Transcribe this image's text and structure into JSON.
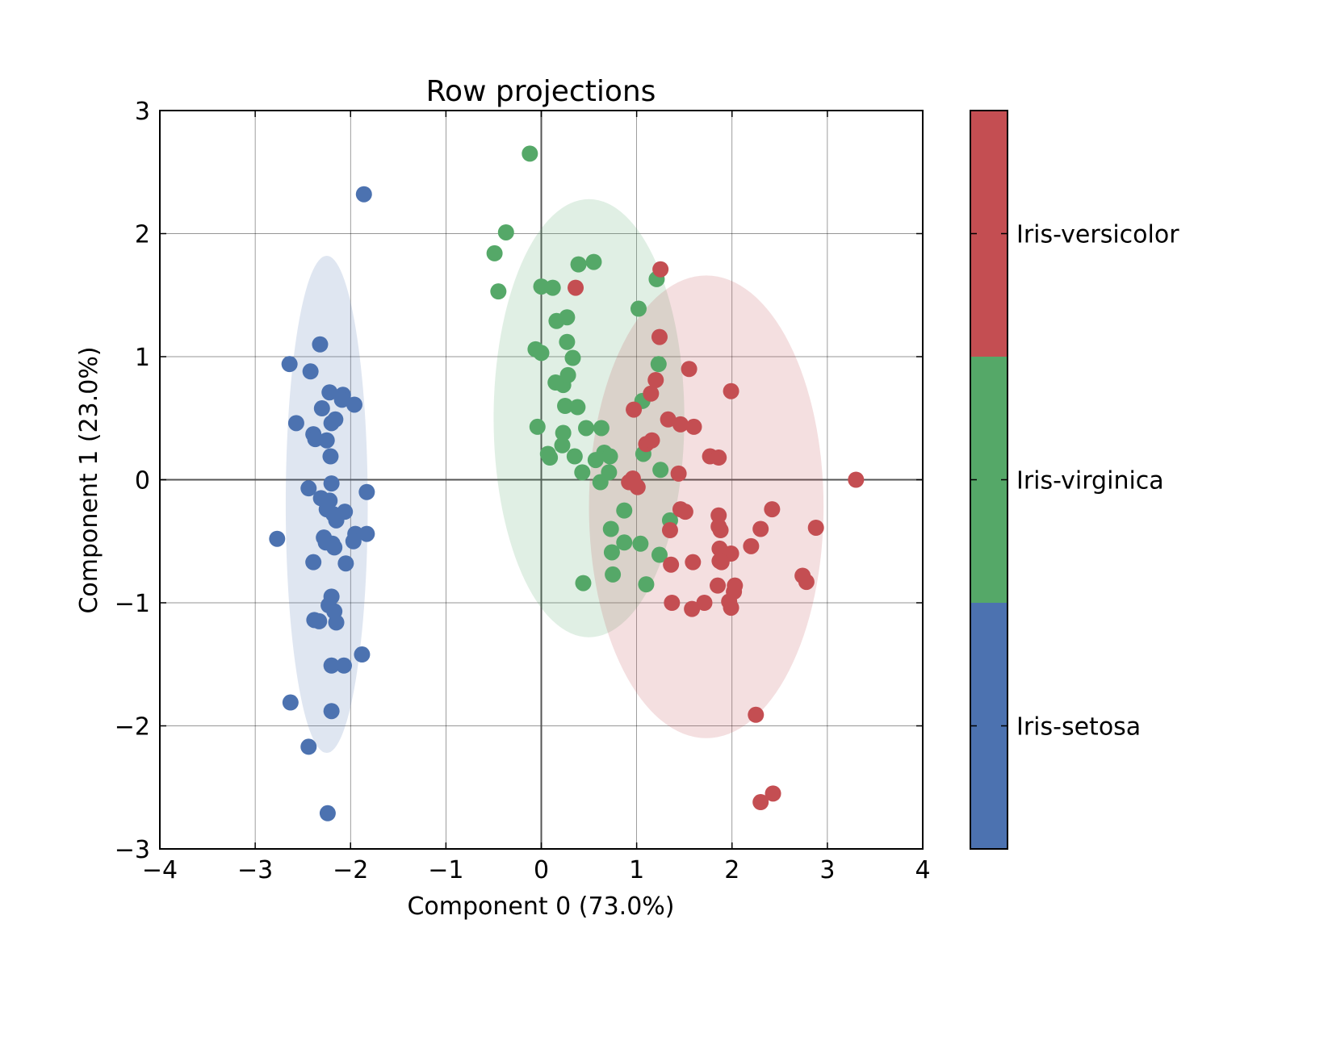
{
  "chart_data": {
    "type": "scatter",
    "title": "Row projections",
    "xlabel": "Component 0 (73.0%)",
    "ylabel": "Component 1 (23.0%)",
    "xlim": [
      -4,
      4
    ],
    "ylim": [
      -3,
      3
    ],
    "xticks": [
      -4,
      -3,
      -2,
      -1,
      0,
      1,
      2,
      3,
      4
    ],
    "yticks": [
      -3,
      -2,
      -1,
      0,
      1,
      2,
      3
    ],
    "xtick_labels": [
      "−4",
      "−3",
      "−2",
      "−1",
      "0",
      "1",
      "2",
      "3",
      "4"
    ],
    "ytick_labels": [
      "−3",
      "−2",
      "−1",
      "0",
      "1",
      "2",
      "3"
    ],
    "grid": true,
    "colorbar": {
      "labels": [
        "Iris-setosa",
        "Iris-virginica",
        "Iris-versicolor"
      ],
      "colors": [
        "#4c72b0",
        "#55a868",
        "#c44e52"
      ]
    },
    "series": [
      {
        "name": "Iris-setosa",
        "color": "#4c72b0",
        "ellipse": {
          "cx": -2.25,
          "cy": -0.2,
          "rx": 0.43,
          "ry": 2.02
        },
        "points": [
          [
            -1.86,
            2.32
          ],
          [
            -2.32,
            1.1
          ],
          [
            -2.64,
            0.94
          ],
          [
            -2.42,
            0.88
          ],
          [
            -2.22,
            0.71
          ],
          [
            -2.08,
            0.69
          ],
          [
            -2.09,
            0.65
          ],
          [
            -1.96,
            0.61
          ],
          [
            -2.3,
            0.58
          ],
          [
            -2.57,
            0.46
          ],
          [
            -2.2,
            0.46
          ],
          [
            -2.16,
            0.49
          ],
          [
            -2.39,
            0.37
          ],
          [
            -2.37,
            0.33
          ],
          [
            -2.25,
            0.32
          ],
          [
            -2.21,
            0.19
          ],
          [
            -2.2,
            -0.03
          ],
          [
            -2.44,
            -0.07
          ],
          [
            -1.83,
            -0.1
          ],
          [
            -2.31,
            -0.15
          ],
          [
            -2.22,
            -0.17
          ],
          [
            -2.25,
            -0.24
          ],
          [
            -2.18,
            -0.28
          ],
          [
            -2.06,
            -0.26
          ],
          [
            -2.15,
            -0.33
          ],
          [
            -2.77,
            -0.48
          ],
          [
            -2.28,
            -0.47
          ],
          [
            -2.26,
            -0.51
          ],
          [
            -2.19,
            -0.52
          ],
          [
            -2.17,
            -0.55
          ],
          [
            -1.95,
            -0.44
          ],
          [
            -1.97,
            -0.5
          ],
          [
            -1.83,
            -0.44
          ],
          [
            -2.39,
            -0.67
          ],
          [
            -2.05,
            -0.68
          ],
          [
            -2.2,
            -0.95
          ],
          [
            -2.23,
            -1.02
          ],
          [
            -2.17,
            -1.07
          ],
          [
            -2.38,
            -1.14
          ],
          [
            -2.33,
            -1.15
          ],
          [
            -2.15,
            -1.16
          ],
          [
            -1.88,
            -1.42
          ],
          [
            -2.2,
            -1.51
          ],
          [
            -2.07,
            -1.51
          ],
          [
            -2.63,
            -1.81
          ],
          [
            -2.2,
            -1.88
          ],
          [
            -2.44,
            -2.17
          ],
          [
            -2.24,
            -2.71
          ]
        ]
      },
      {
        "name": "Iris-virginica",
        "color": "#55a868",
        "ellipse": {
          "cx": 0.5,
          "cy": 0.5,
          "rx": 1.0,
          "ry": 1.78
        },
        "points": [
          [
            -0.12,
            2.65
          ],
          [
            -0.37,
            2.01
          ],
          [
            -0.49,
            1.84
          ],
          [
            -0.45,
            1.53
          ],
          [
            0.0,
            1.57
          ],
          [
            0.12,
            1.56
          ],
          [
            0.39,
            1.75
          ],
          [
            0.55,
            1.77
          ],
          [
            1.21,
            1.63
          ],
          [
            0.27,
            1.32
          ],
          [
            0.16,
            1.29
          ],
          [
            1.02,
            1.39
          ],
          [
            0.27,
            1.12
          ],
          [
            -0.06,
            1.06
          ],
          [
            0.0,
            1.03
          ],
          [
            0.33,
            0.99
          ],
          [
            0.15,
            0.79
          ],
          [
            0.23,
            0.77
          ],
          [
            0.28,
            0.85
          ],
          [
            1.23,
            0.94
          ],
          [
            1.06,
            0.64
          ],
          [
            0.25,
            0.6
          ],
          [
            0.38,
            0.59
          ],
          [
            -0.04,
            0.43
          ],
          [
            0.47,
            0.42
          ],
          [
            0.63,
            0.42
          ],
          [
            0.23,
            0.38
          ],
          [
            0.22,
            0.28
          ],
          [
            0.07,
            0.21
          ],
          [
            0.09,
            0.18
          ],
          [
            0.35,
            0.19
          ],
          [
            0.66,
            0.22
          ],
          [
            0.72,
            0.19
          ],
          [
            0.57,
            0.16
          ],
          [
            1.07,
            0.21
          ],
          [
            0.43,
            0.06
          ],
          [
            0.71,
            0.06
          ],
          [
            1.25,
            0.08
          ],
          [
            0.62,
            -0.02
          ],
          [
            1.35,
            -0.33
          ],
          [
            0.87,
            -0.25
          ],
          [
            0.73,
            -0.4
          ],
          [
            0.87,
            -0.51
          ],
          [
            1.04,
            -0.52
          ],
          [
            0.74,
            -0.59
          ],
          [
            1.24,
            -0.61
          ],
          [
            0.75,
            -0.77
          ],
          [
            0.44,
            -0.84
          ],
          [
            1.1,
            -0.85
          ]
        ]
      },
      {
        "name": "Iris-versicolor",
        "color": "#c44e52",
        "ellipse": {
          "cx": 1.73,
          "cy": -0.22,
          "rx": 1.23,
          "ry": 1.88
        },
        "points": [
          [
            1.25,
            1.71
          ],
          [
            0.36,
            1.56
          ],
          [
            1.24,
            1.16
          ],
          [
            1.55,
            0.9
          ],
          [
            1.2,
            0.81
          ],
          [
            1.15,
            0.7
          ],
          [
            1.99,
            0.72
          ],
          [
            0.97,
            0.57
          ],
          [
            1.33,
            0.49
          ],
          [
            1.46,
            0.45
          ],
          [
            1.6,
            0.43
          ],
          [
            1.1,
            0.29
          ],
          [
            1.16,
            0.32
          ],
          [
            1.77,
            0.19
          ],
          [
            1.86,
            0.18
          ],
          [
            1.44,
            0.05
          ],
          [
            0.96,
            0.01
          ],
          [
            0.92,
            -0.02
          ],
          [
            1.01,
            -0.06
          ],
          [
            3.3,
            0.0
          ],
          [
            1.46,
            -0.24
          ],
          [
            1.51,
            -0.26
          ],
          [
            2.42,
            -0.24
          ],
          [
            1.86,
            -0.29
          ],
          [
            1.86,
            -0.38
          ],
          [
            1.88,
            -0.41
          ],
          [
            1.35,
            -0.41
          ],
          [
            2.3,
            -0.4
          ],
          [
            2.88,
            -0.39
          ],
          [
            2.2,
            -0.54
          ],
          [
            1.87,
            -0.56
          ],
          [
            1.99,
            -0.6
          ],
          [
            1.87,
            -0.66
          ],
          [
            1.89,
            -0.67
          ],
          [
            1.36,
            -0.69
          ],
          [
            1.59,
            -0.67
          ],
          [
            2.74,
            -0.78
          ],
          [
            2.78,
            -0.83
          ],
          [
            1.85,
            -0.86
          ],
          [
            2.03,
            -0.86
          ],
          [
            2.02,
            -0.91
          ],
          [
            1.37,
            -1.0
          ],
          [
            1.71,
            -1.0
          ],
          [
            1.97,
            -0.99
          ],
          [
            1.99,
            -1.04
          ],
          [
            1.58,
            -1.05
          ],
          [
            2.25,
            -1.91
          ],
          [
            2.43,
            -2.55
          ],
          [
            2.3,
            -2.62
          ]
        ]
      }
    ]
  }
}
